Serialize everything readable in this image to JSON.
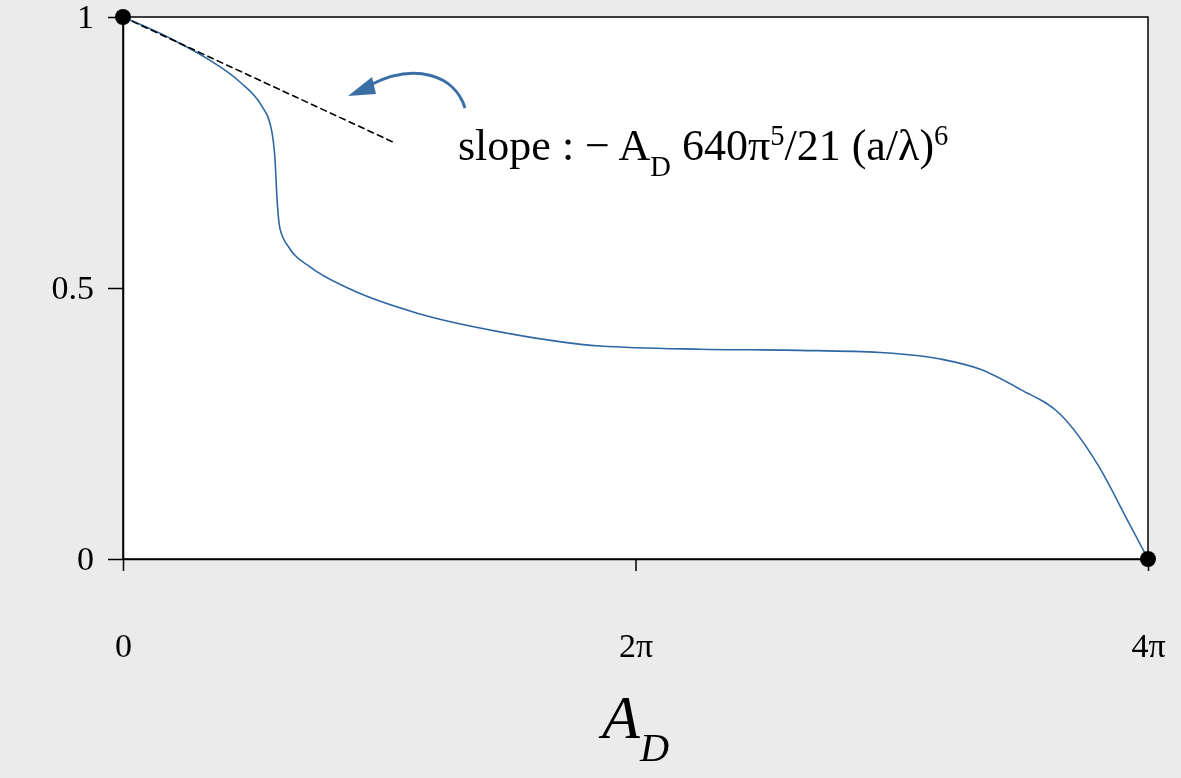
{
  "chart_data": {
    "type": "line",
    "xlabel": "A$_{D}$",
    "xlim": [
      0,
      12.566
    ],
    "ylim": [
      0,
      1
    ],
    "xticks": [
      {
        "value": 0,
        "label": "0"
      },
      {
        "value": 6.283,
        "label": "2π"
      },
      {
        "value": 12.566,
        "label": "4π"
      }
    ],
    "yticks": [
      0,
      0.5,
      1
    ],
    "grid": false,
    "annotations": [
      "slope : − A$_{D}$ 640π$^{5}$/21 (a/λ)$^{6}$"
    ],
    "series": [
      {
        "color": "#2f67a2",
        "line_style": "solid",
        "marker": "none",
        "x": [
          0,
          0.576,
          1.067,
          1.434,
          1.704,
          1.802,
          1.863,
          1.888,
          1.925,
          2.047,
          2.293,
          2.783,
          3.641,
          4.622,
          5.848,
          7.07,
          8.3,
          9.28,
          10.02,
          10.51,
          11.0,
          11.49,
          11.95,
          12.33,
          12.566
        ],
        "values": [
          1,
          0.961,
          0.92,
          0.88,
          0.835,
          0.804,
          0.739,
          0.665,
          0.609,
          0.572,
          0.539,
          0.498,
          0.452,
          0.419,
          0.393,
          0.387,
          0.385,
          0.381,
          0.369,
          0.35,
          0.313,
          0.267,
          0.174,
          0.067,
          0
        ]
      },
      {
        "color": "#000000",
        "line_style": "dashed",
        "marker": "none",
        "x": [
          0,
          3.3
        ],
        "values": [
          1,
          0.77
        ]
      },
      {
        "type": "scatter",
        "color": "#000000",
        "marker": "circle",
        "x": [
          0,
          12.566
        ],
        "values": [
          1,
          0
        ]
      }
    ]
  }
}
